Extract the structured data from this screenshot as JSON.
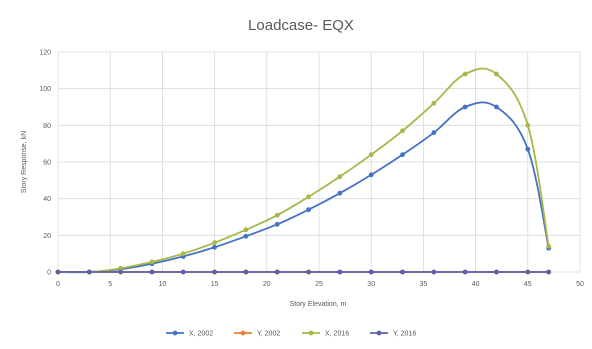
{
  "chart_data": {
    "type": "line",
    "title": "Loadcase- EQX",
    "xlabel": "Story Elevation, m",
    "ylabel": "Story Response, kN",
    "xlim": [
      0,
      50
    ],
    "ylim": [
      0,
      120
    ],
    "xticks": [
      "0",
      "5",
      "10",
      "15",
      "20",
      "25",
      "30",
      "35",
      "40",
      "45",
      "50"
    ],
    "yticks": [
      "0",
      "20",
      "40",
      "60",
      "80",
      "100",
      "120"
    ],
    "grid": true,
    "legend": "bottom",
    "x": [
      0,
      3,
      6,
      9,
      12,
      15,
      18,
      21,
      24,
      27,
      30,
      33,
      36,
      39,
      42,
      45,
      47
    ],
    "series": [
      {
        "name": "X, 2002",
        "color": "#4472C4",
        "values": [
          0,
          0,
          1.5,
          4.5,
          8.5,
          13.5,
          19.5,
          26,
          34,
          43,
          53,
          64,
          76,
          90,
          90,
          67,
          13
        ]
      },
      {
        "name": "Y, 2002",
        "color": "#ED7D31",
        "values": [
          0,
          0,
          0,
          0,
          0,
          0,
          0,
          0,
          0,
          0,
          0,
          0,
          0,
          0,
          0,
          0,
          0
        ]
      },
      {
        "name": "X, 2016",
        "color": "#A5B84A",
        "values": [
          0,
          0,
          2,
          5.5,
          10,
          16,
          23,
          31,
          41,
          52,
          64,
          77,
          92,
          108,
          108,
          80,
          14
        ]
      },
      {
        "name": "Y, 2016",
        "color": "#5B62A8",
        "values": [
          0,
          0,
          0,
          0,
          0,
          0,
          0,
          0,
          0,
          0,
          0,
          0,
          0,
          0,
          0,
          0,
          0
        ]
      }
    ]
  }
}
